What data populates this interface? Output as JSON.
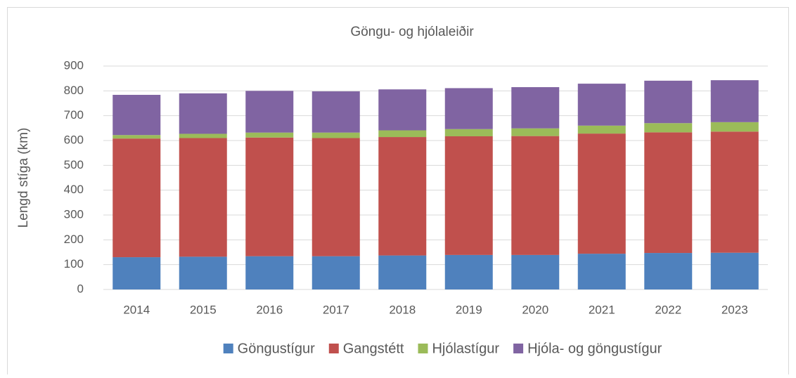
{
  "chart_data": {
    "type": "stacked_bar",
    "title": "Göngu- og hjólaleiðir",
    "y_label": "Lengd stíga (km)",
    "categories": [
      "2014",
      "2015",
      "2016",
      "2017",
      "2018",
      "2019",
      "2020",
      "2021",
      "2022",
      "2023"
    ],
    "series": [
      {
        "name": "Göngustígur",
        "color": "#4f81bd",
        "values": [
          130,
          132,
          134,
          134,
          137,
          139,
          139,
          144,
          147,
          148
        ]
      },
      {
        "name": "Gangstétt",
        "color": "#c0504d",
        "values": [
          478,
          478,
          478,
          476,
          477,
          478,
          479,
          484,
          486,
          488
        ]
      },
      {
        "name": "Hjólastígur",
        "color": "#9bbb59",
        "values": [
          14,
          17,
          20,
          22,
          27,
          29,
          31,
          32,
          37,
          38
        ]
      },
      {
        "name": "Hjóla- og göngustígur",
        "color": "#8064a2",
        "values": [
          162,
          163,
          168,
          166,
          165,
          165,
          166,
          169,
          171,
          169
        ]
      }
    ],
    "ylim": [
      0,
      900
    ],
    "yticks": [
      0,
      100,
      200,
      300,
      400,
      500,
      600,
      700,
      800,
      900
    ],
    "grid": true,
    "legend": "bottom"
  }
}
